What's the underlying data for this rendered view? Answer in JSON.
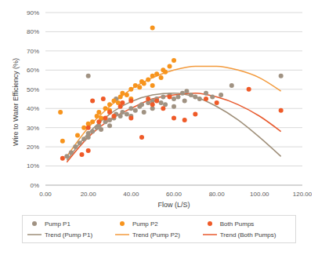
{
  "chart_data": {
    "type": "scatter",
    "x_label": "Flow (L/S)",
    "y_label": "Wire to Water Efficiency (%)",
    "xlim": [
      0,
      120
    ],
    "xticks": [
      {
        "value": 0,
        "label": "0.00"
      },
      {
        "value": 20,
        "label": "20.00"
      },
      {
        "value": 40,
        "label": "40.00"
      },
      {
        "value": 60,
        "label": "60.00"
      },
      {
        "value": 80,
        "label": "80.00"
      },
      {
        "value": 100,
        "label": "100.00"
      },
      {
        "value": 120,
        "label": "120.00"
      }
    ],
    "ylim": [
      0,
      90
    ],
    "yticks": [
      {
        "value": 0,
        "label": "0%"
      },
      {
        "value": 10,
        "label": "10%"
      },
      {
        "value": 20,
        "label": "20%"
      },
      {
        "value": 30,
        "label": "30%"
      },
      {
        "value": 40,
        "label": "40%"
      },
      {
        "value": 50,
        "label": "50%"
      },
      {
        "value": 60,
        "label": "60%"
      },
      {
        "value": 70,
        "label": "70%"
      },
      {
        "value": 80,
        "label": "80%"
      },
      {
        "value": 90,
        "label": "90%"
      }
    ],
    "grid": true,
    "legend": "bottom",
    "series": [
      {
        "name": "Pump P1",
        "type": "scatter",
        "marker": "circle",
        "color": "#a09282",
        "x": [
          10,
          12,
          14,
          16,
          18,
          20,
          20,
          22,
          24,
          25,
          26,
          28,
          30,
          30,
          32,
          33,
          35,
          36,
          38,
          40,
          40,
          42,
          44,
          45,
          46,
          48,
          50,
          50,
          52,
          54,
          55,
          56,
          58,
          60,
          60,
          62,
          64,
          65,
          66,
          68,
          70,
          72,
          75,
          78,
          82,
          87,
          110,
          20,
          33
        ],
        "values": [
          15,
          17,
          20,
          22,
          24,
          27,
          25,
          28,
          30,
          31,
          29,
          33,
          34,
          31,
          35,
          37,
          36,
          38,
          37,
          40,
          36,
          39,
          41,
          42,
          38,
          43,
          44,
          40,
          45,
          43,
          46,
          42,
          47,
          45,
          41,
          46,
          48,
          44,
          49,
          47,
          46,
          45,
          48,
          46,
          47,
          52,
          57,
          57,
          45
        ]
      },
      {
        "name": "Pump P2",
        "type": "scatter",
        "marker": "circle",
        "color": "#f7941d",
        "x": [
          7,
          8,
          15,
          18,
          20,
          22,
          24,
          25,
          26,
          28,
          30,
          30,
          32,
          34,
          35,
          36,
          38,
          40,
          40,
          42,
          44,
          45,
          46,
          48,
          50,
          50,
          52,
          54,
          55,
          56,
          58,
          60,
          50
        ],
        "values": [
          38,
          23,
          26,
          30,
          32,
          33,
          36,
          38,
          35,
          40,
          42,
          39,
          44,
          43,
          46,
          48,
          47,
          50,
          45,
          52,
          51,
          54,
          53,
          55,
          57,
          52,
          58,
          56,
          60,
          59,
          62,
          65,
          82
        ]
      },
      {
        "name": "Both Pumps",
        "type": "scatter",
        "marker": "circle",
        "color": "#ef5a28",
        "x": [
          8,
          17,
          20,
          20,
          22,
          25,
          27,
          28,
          30,
          32,
          35,
          36,
          40,
          40,
          45,
          48,
          50,
          52,
          55,
          58,
          60,
          65,
          70,
          75,
          80,
          95,
          110
        ],
        "values": [
          14,
          16,
          18,
          30,
          44,
          33,
          45,
          35,
          38,
          36,
          41,
          43,
          35,
          44,
          25,
          45,
          42,
          44,
          40,
          46,
          35,
          34,
          37,
          45,
          43,
          50,
          39
        ]
      },
      {
        "name": "Trend (Pump P1)",
        "type": "line",
        "color": "#9e8e78",
        "x": [
          10,
          20,
          30,
          40,
          50,
          60,
          70,
          80,
          90,
          100,
          110
        ],
        "values": [
          13,
          27,
          37,
          43.5,
          47,
          48,
          46,
          41,
          34,
          25,
          15
        ]
      },
      {
        "name": "Trend (Pump P2)",
        "type": "line",
        "color": "#f39a3c",
        "x": [
          10,
          20,
          30,
          40,
          50,
          60,
          70,
          80,
          90,
          100,
          110
        ],
        "values": [
          15,
          30,
          41,
          50,
          56,
          60,
          62,
          62,
          60,
          56,
          49
        ]
      },
      {
        "name": "Trend (Both Pumps)",
        "type": "line",
        "color": "#e8592d",
        "x": [
          10,
          20,
          30,
          40,
          50,
          60,
          70,
          80,
          90,
          100,
          110
        ],
        "values": [
          12,
          25,
          34,
          40,
          45,
          47,
          48,
          46,
          42,
          36,
          28
        ]
      }
    ]
  }
}
